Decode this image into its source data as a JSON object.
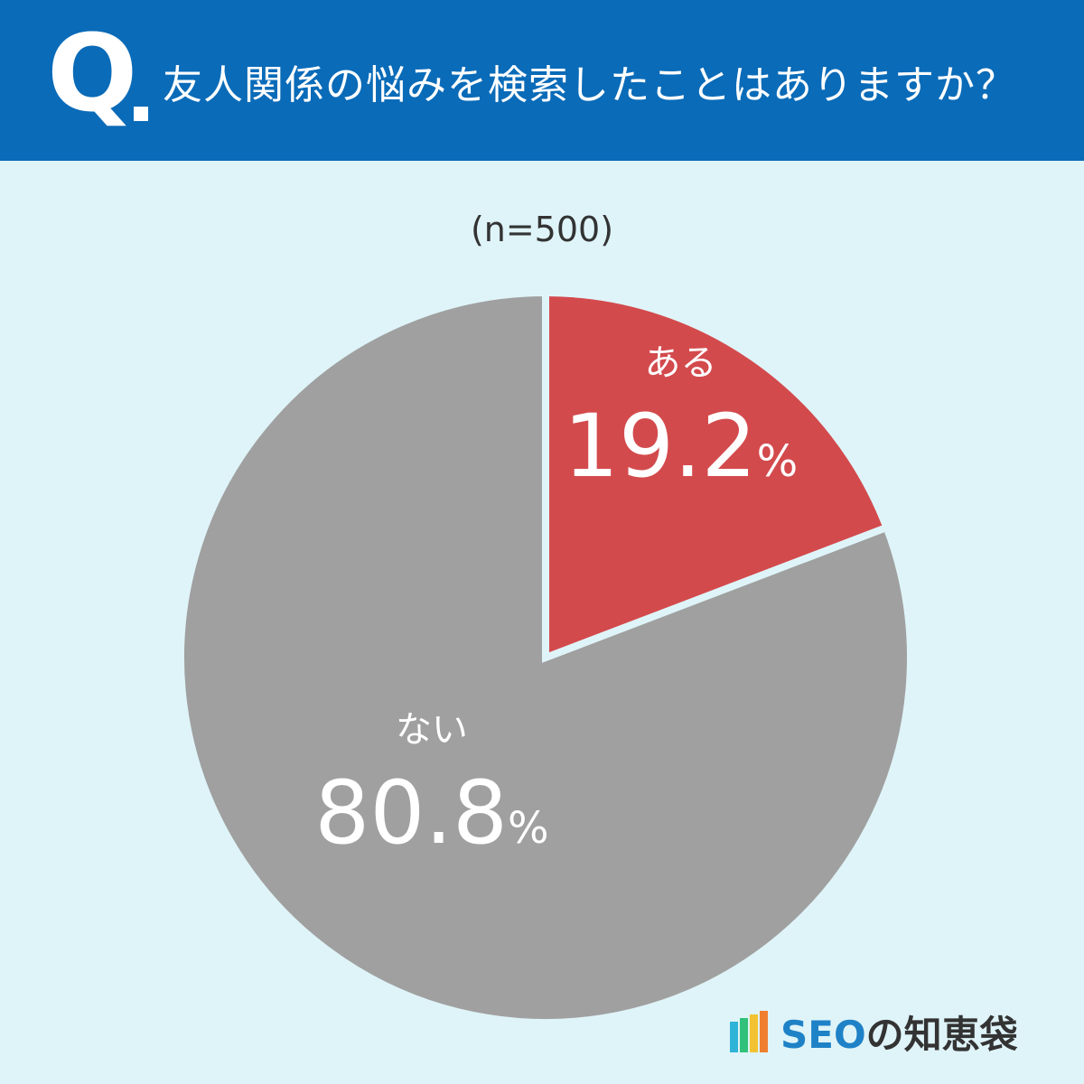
{
  "header": {
    "q_mark": "Q",
    "question": "友人関係の悩みを検索したことはありますか？",
    "bg_color": "#0a6bb8"
  },
  "sample_label": "(n=500)",
  "chart_data": {
    "type": "pie",
    "title": "友人関係の悩みを検索したことはありますか？",
    "start_angle": "12 o'clock",
    "direction": "clockwise",
    "slices": [
      {
        "label": "ある",
        "value": 19.2,
        "display": "19.2",
        "unit": "%",
        "color": "#d34a4d"
      },
      {
        "label": "ない",
        "value": 80.8,
        "display": "80.8",
        "unit": "%",
        "color": "#a0a0a0"
      }
    ]
  },
  "logo": {
    "latin": "SEO",
    "jp": "の知恵袋",
    "stripe_colors": [
      "#2fb3d7",
      "#31c17a",
      "#f2c232",
      "#ef7f2e"
    ]
  }
}
